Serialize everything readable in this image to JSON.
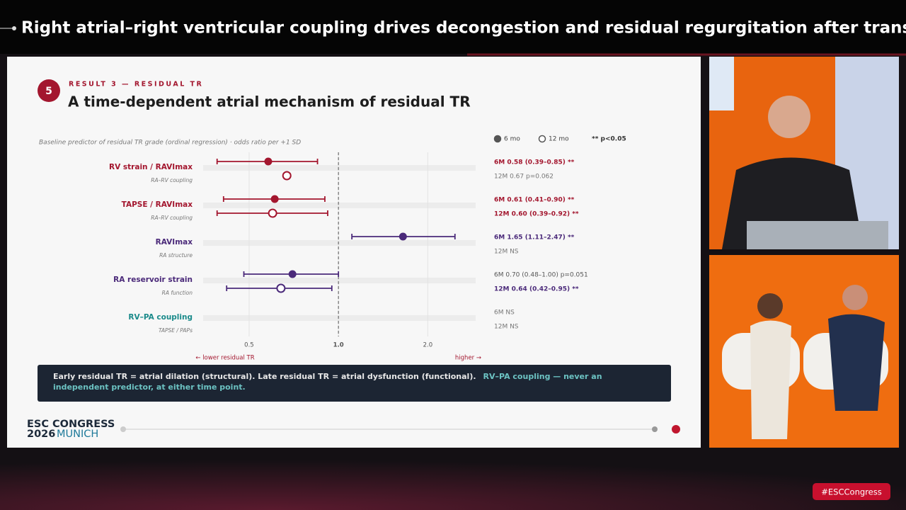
{
  "header": {
    "title": "Right atrial–right ventricular coupling drives decongestion and residual regurgitation after transca…"
  },
  "slide": {
    "badge": "5",
    "kicker": "RESULT 3 — RESIDUAL TR",
    "title": "A time-dependent atrial mechanism of residual TR",
    "callout": {
      "text": "Early residual TR = atrial dilation (structural).   Late residual TR = atrial dysfunction (functional).",
      "highlight": "RV–PA coupling — never an independent predictor, at either time point."
    },
    "footer": {
      "line1": "ESC CONGRESS",
      "year": "2026",
      "city": "MUNICH"
    }
  },
  "hashtag": "#ESCCongress",
  "chart_data": {
    "type": "forest",
    "subtitle": "Baseline predictor of residual TR grade (ordinal regression) · odds ratio per +1 SD",
    "categories": [
      "RV strain / RAVImax",
      "TAPSE / RAVImax",
      "RAVImax",
      "RA reservoir strain",
      "RV–PA coupling"
    ],
    "category_notes": [
      "RA–RV coupling",
      "RA–RV coupling",
      "RA structure",
      "RA function",
      "TAPSE / PAPs"
    ],
    "category_colors": [
      "#a3162e",
      "#a3162e",
      "#4b2a7a",
      "#4b2a7a",
      "#1a8a8a"
    ],
    "series": [
      {
        "name": "6 mo",
        "color": "#555555",
        "marker": "filled",
        "values": [
          0.58,
          0.61,
          1.65,
          0.7,
          null
        ],
        "lower": [
          0.39,
          0.41,
          1.11,
          0.48,
          null
        ],
        "upper": [
          0.85,
          0.9,
          2.47,
          1.0,
          null
        ],
        "value_labels": [
          "6M  0.58 (0.39–0.85) **",
          "6M  0.61 (0.41–0.90) **",
          "6M  1.65 (1.11–2.47) **",
          "6M  0.70 (0.48–1.00)  p=0.051",
          "6M  NS"
        ],
        "label_colors": [
          "#a3162e",
          "#a3162e",
          "#4b2a7a",
          "#555555",
          "#777777"
        ]
      },
      {
        "name": "12 mo",
        "color": "#555555",
        "marker": "open",
        "values": [
          0.67,
          0.6,
          null,
          0.64,
          null
        ],
        "lower": [
          null,
          0.39,
          null,
          0.42,
          null
        ],
        "upper": [
          null,
          0.92,
          null,
          0.95,
          null
        ],
        "value_labels": [
          "12M  0.67  p=0.062",
          "12M  0.60 (0.39–0.92) **",
          "12M  NS",
          "12M  0.64 (0.42–0.95) **",
          "12M  NS"
        ],
        "label_colors": [
          "#777777",
          "#a3162e",
          "#777777",
          "#4b2a7a",
          "#777777"
        ]
      }
    ],
    "legend_note": "** p<0.05",
    "xlim": [
      0.35,
      2.9
    ],
    "log_x": true,
    "xticks": [
      0.5,
      {
        "value": 1,
        "label": "1.0"
      },
      {
        "value": 2,
        "label": "2.0"
      }
    ],
    "reference_line": 1,
    "x_left_label": "← lower residual TR",
    "x_right_label": "higher →",
    "grid": true
  }
}
